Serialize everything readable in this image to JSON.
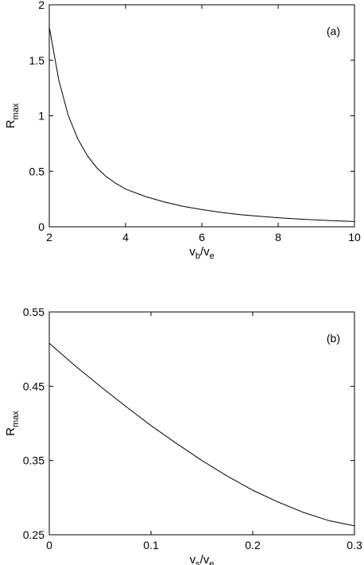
{
  "chart_data": [
    {
      "type": "line",
      "panel_label": "(a)",
      "xlabel": {
        "main": "v",
        "sub1": "b",
        "sep": "/v",
        "sub2": "e"
      },
      "ylabel": {
        "main": "R",
        "sub": "max"
      },
      "xlim": [
        2,
        10
      ],
      "ylim": [
        0,
        2
      ],
      "xticks": [
        2,
        4,
        6,
        8,
        10
      ],
      "xtick_labels": [
        "2",
        "4",
        "6",
        "8",
        "10"
      ],
      "yticks": [
        0,
        0.5,
        1,
        1.5,
        2
      ],
      "ytick_labels": [
        "0",
        "0.5",
        "1",
        "1.5",
        "2"
      ],
      "grid": false,
      "series": [
        {
          "x": [
            2.0,
            2.25,
            2.5,
            2.75,
            3.0,
            3.25,
            3.5,
            3.75,
            4.0,
            4.5,
            5.0,
            5.5,
            6.0,
            6.5,
            7.0,
            7.5,
            8.0,
            8.5,
            9.0,
            9.5,
            10.0
          ],
          "y": [
            1.8,
            1.32,
            1.0,
            0.79,
            0.64,
            0.53,
            0.45,
            0.39,
            0.34,
            0.275,
            0.225,
            0.185,
            0.155,
            0.13,
            0.11,
            0.095,
            0.082,
            0.071,
            0.062,
            0.054,
            0.047
          ]
        }
      ]
    },
    {
      "type": "line",
      "panel_label": "(b)",
      "xlabel": {
        "main": "v",
        "sub1": "s",
        "sep": "/v",
        "sub2": "e"
      },
      "ylabel": {
        "main": "R",
        "sub": "max"
      },
      "xlim": [
        0,
        0.3
      ],
      "ylim": [
        0.25,
        0.55
      ],
      "xticks": [
        0,
        0.1,
        0.2,
        0.3
      ],
      "xtick_labels": [
        "0",
        "0.1",
        "0.2",
        "0.3"
      ],
      "yticks": [
        0.25,
        0.35,
        0.45,
        0.55
      ],
      "ytick_labels": [
        "0.25",
        "0.35",
        "0.45",
        "0.55"
      ],
      "grid": false,
      "series": [
        {
          "x": [
            0,
            0.025,
            0.05,
            0.075,
            0.1,
            0.125,
            0.15,
            0.175,
            0.2,
            0.225,
            0.25,
            0.275,
            0.3
          ],
          "y": [
            0.508,
            0.478,
            0.45,
            0.423,
            0.397,
            0.373,
            0.35,
            0.329,
            0.31,
            0.294,
            0.28,
            0.269,
            0.262
          ]
        }
      ]
    }
  ]
}
